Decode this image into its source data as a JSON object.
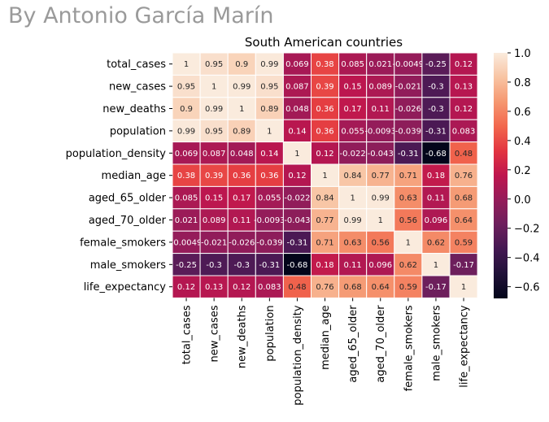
{
  "watermark": "By Antonio García Marín",
  "chart_data": {
    "type": "heatmap",
    "title": "South American countries",
    "variables": [
      "total_cases",
      "new_cases",
      "new_deaths",
      "population",
      "population_density",
      "median_age",
      "aged_65_older",
      "aged_70_older",
      "female_smokers",
      "male_smokers",
      "life_expectancy"
    ],
    "values": [
      [
        1,
        0.95,
        0.9,
        0.99,
        0.069,
        0.38,
        0.085,
        0.021,
        -0.0049,
        -0.25,
        0.12
      ],
      [
        0.95,
        1,
        0.99,
        0.95,
        0.087,
        0.39,
        0.15,
        0.089,
        -0.021,
        -0.3,
        0.13
      ],
      [
        0.9,
        0.99,
        1,
        0.89,
        0.048,
        0.36,
        0.17,
        0.11,
        -0.026,
        -0.3,
        0.12
      ],
      [
        0.99,
        0.95,
        0.89,
        1,
        0.14,
        0.36,
        0.055,
        -0.0093,
        -0.039,
        -0.31,
        0.083
      ],
      [
        0.069,
        0.087,
        0.048,
        0.14,
        1,
        0.12,
        -0.022,
        -0.043,
        -0.31,
        -0.68,
        0.48
      ],
      [
        0.38,
        0.39,
        0.36,
        0.36,
        0.12,
        1,
        0.84,
        0.77,
        0.71,
        0.18,
        0.76
      ],
      [
        0.085,
        0.15,
        0.17,
        0.055,
        -0.022,
        0.84,
        1,
        0.99,
        0.63,
        0.11,
        0.68
      ],
      [
        0.021,
        0.089,
        0.11,
        -0.0093,
        -0.043,
        0.77,
        0.99,
        1,
        0.56,
        0.096,
        0.64
      ],
      [
        -0.0049,
        -0.021,
        -0.026,
        -0.039,
        -0.31,
        0.71,
        0.63,
        0.56,
        1,
        0.62,
        0.59
      ],
      [
        -0.25,
        -0.3,
        -0.3,
        -0.31,
        -0.68,
        0.18,
        0.11,
        0.096,
        0.62,
        1,
        -0.17
      ],
      [
        0.12,
        0.13,
        0.12,
        0.083,
        0.48,
        0.76,
        0.68,
        0.64,
        0.59,
        -0.17,
        1
      ]
    ],
    "labels": [
      [
        "1",
        "0.95",
        "0.9",
        "0.99",
        "0.069",
        "0.38",
        "0.085",
        "0.021",
        "-0.0049",
        "-0.25",
        "0.12"
      ],
      [
        "0.95",
        "1",
        "0.99",
        "0.95",
        "0.087",
        "0.39",
        "0.15",
        "0.089",
        "-0.021",
        "-0.3",
        "0.13"
      ],
      [
        "0.9",
        "0.99",
        "1",
        "0.89",
        "0.048",
        "0.36",
        "0.17",
        "0.11",
        "-0.026",
        "-0.3",
        "0.12"
      ],
      [
        "0.99",
        "0.95",
        "0.89",
        "1",
        "0.14",
        "0.36",
        "0.055",
        "-0.0093",
        "-0.039",
        "-0.31",
        "0.083"
      ],
      [
        "0.069",
        "0.087",
        "0.048",
        "0.14",
        "1",
        "0.12",
        "-0.022",
        "-0.043",
        "-0.31",
        "-0.68",
        "0.48"
      ],
      [
        "0.38",
        "0.39",
        "0.36",
        "0.36",
        "0.12",
        "1",
        "0.84",
        "0.77",
        "0.71",
        "0.18",
        "0.76"
      ],
      [
        "0.085",
        "0.15",
        "0.17",
        "0.055",
        "-0.022",
        "0.84",
        "1",
        "0.99",
        "0.63",
        "0.11",
        "0.68"
      ],
      [
        "0.021",
        "0.089",
        "0.11",
        "-0.0093",
        "-0.043",
        "0.77",
        "0.99",
        "1",
        "0.56",
        "0.096",
        "0.64"
      ],
      [
        "-0.0049",
        "-0.021",
        "-0.026",
        "-0.039",
        "-0.31",
        "0.71",
        "0.63",
        "0.56",
        "1",
        "0.62",
        "0.59"
      ],
      [
        "-0.25",
        "-0.3",
        "-0.3",
        "-0.31",
        "-0.68",
        "0.18",
        "0.11",
        "0.096",
        "0.62",
        "1",
        "-0.17"
      ],
      [
        "0.12",
        "0.13",
        "0.12",
        "0.083",
        "0.48",
        "0.76",
        "0.68",
        "0.64",
        "0.59",
        "-0.17",
        "1"
      ]
    ],
    "colorbar": {
      "colormap": "rocket",
      "range": [
        -0.68,
        1
      ],
      "ticks": [
        1.0,
        0.8,
        0.6,
        0.4,
        0.2,
        0.0,
        -0.2,
        -0.4,
        -0.6
      ],
      "tick_labels": [
        "1.0",
        "0.8",
        "0.6",
        "0.4",
        "0.2",
        "0.0",
        "−0.2",
        "−0.4",
        "−0.6"
      ]
    },
    "grid": false,
    "cell_border_color": "#ffffff"
  }
}
